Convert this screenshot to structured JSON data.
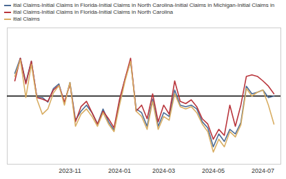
{
  "chart_data": {
    "type": "line",
    "categories": [
      null,
      null,
      null,
      null,
      null,
      null,
      null,
      null,
      null,
      null,
      "2023-11",
      null,
      null,
      null,
      null,
      null,
      null,
      null,
      null,
      "2024-01",
      null,
      null,
      null,
      null,
      null,
      null,
      null,
      "2024-03",
      null,
      null,
      null,
      null,
      null,
      null,
      null,
      null,
      "2024-05",
      null,
      null,
      null,
      null,
      null,
      null,
      null,
      null,
      "2024-07",
      null,
      null
    ],
    "series": [
      {
        "name": "itial Claims-Initial Claims in Florida-Initial Claims in North Carolina-Initial Claims in Michigan-Initial Claims in",
        "color": "#4a6a94",
        "values": [
          30,
          50,
          18,
          46,
          -2,
          -2,
          -8,
          10,
          16,
          -10,
          18,
          -32,
          -20,
          -12,
          -22,
          -37,
          -17,
          -34,
          -45,
          -7,
          23,
          46,
          -17,
          -22,
          -40,
          -4,
          -40,
          -22,
          -27,
          8,
          -12,
          -14,
          -12,
          -17,
          -34,
          -42,
          -67,
          -50,
          -60,
          -44,
          -50,
          -35,
          13,
          3,
          5,
          8,
          -2,
          0
        ]
      },
      {
        "name": "itial Claims-Initial Claims in Florida-Initial Claims in North Carolina",
        "color": "#b8333a",
        "values": [
          20,
          50,
          16,
          46,
          -2,
          -4,
          -7,
          8,
          14,
          -8,
          16,
          -34,
          -14,
          -7,
          -22,
          -37,
          -20,
          -30,
          -42,
          -4,
          23,
          50,
          -20,
          -12,
          -30,
          3,
          -34,
          -12,
          -24,
          20,
          -7,
          -10,
          -5,
          -14,
          -30,
          -37,
          -57,
          -44,
          -52,
          -12,
          -40,
          -12,
          26,
          28,
          26,
          20,
          13,
          3
        ]
      },
      {
        "name": "itial Claims",
        "color": "#d8ad62",
        "values": [
          26,
          48,
          -2,
          42,
          -4,
          -24,
          -17,
          4,
          14,
          -12,
          18,
          -40,
          -24,
          -17,
          -27,
          -40,
          -22,
          -37,
          -47,
          -12,
          20,
          46,
          -20,
          -27,
          -44,
          -7,
          -44,
          -27,
          -32,
          3,
          -14,
          -17,
          -14,
          -22,
          -37,
          -47,
          -74,
          -57,
          -67,
          -47,
          -54,
          -38,
          10,
          0,
          5,
          8,
          -12,
          -37
        ]
      }
    ],
    "ylim": [
      -90,
      90
    ],
    "yticks": [
      0
    ],
    "grid": true,
    "tick_labels": "x",
    "legend": "top"
  }
}
